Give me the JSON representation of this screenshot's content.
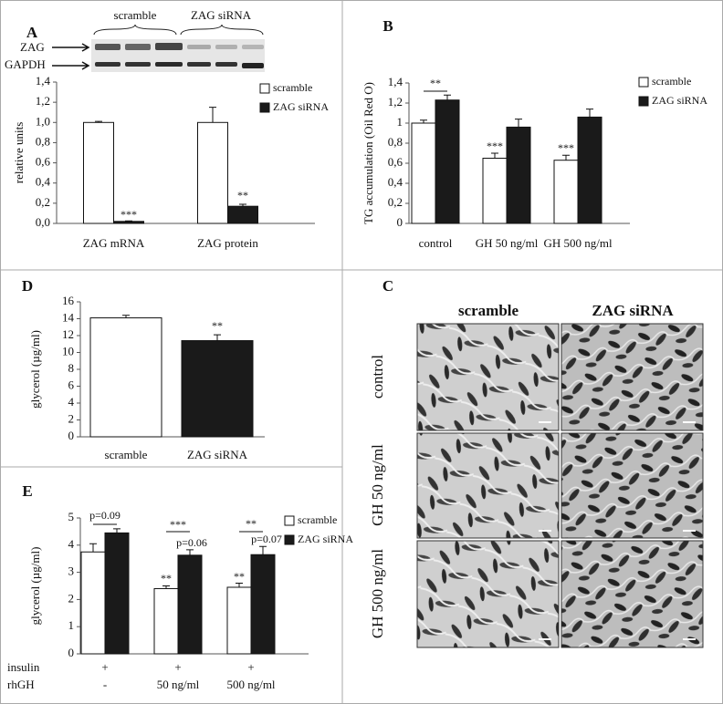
{
  "chart_data": [
    {
      "type": "bar",
      "panel": "A",
      "y_label": "relative units",
      "blot_groups": [
        "scramble",
        "ZAG siRNA"
      ],
      "blot_bands": [
        "ZAG",
        "GAPDH"
      ],
      "categories": [
        "ZAG mRNA",
        "ZAG protein"
      ],
      "series": [
        {
          "name": "scramble",
          "color": "#ffffff",
          "values": [
            1.0,
            1.0
          ],
          "errors": [
            0.01,
            0.15
          ]
        },
        {
          "name": "ZAG siRNA",
          "color": "#1a1a1a",
          "values": [
            0.02,
            0.17
          ],
          "errors": [
            0.005,
            0.02
          ]
        }
      ],
      "ylim": [
        0,
        1.4
      ],
      "yticks": [
        {
          "value": 0,
          "label": "0,0"
        },
        {
          "value": 0.2,
          "label": "0,2"
        },
        {
          "value": 0.4,
          "label": "0,4"
        },
        {
          "value": 0.6,
          "label": "0,6"
        },
        {
          "value": 0.8,
          "label": "0,8"
        },
        {
          "value": 1.0,
          "label": "1,0"
        },
        {
          "value": 1.2,
          "label": "1,2"
        },
        {
          "value": 1.4,
          "label": "1,4"
        }
      ],
      "annotations": [
        "***",
        "**"
      ]
    },
    {
      "type": "bar",
      "panel": "B",
      "y_label": "TG accumulation (Oil Red O)",
      "categories": [
        "control",
        "GH 50 ng/ml",
        "GH 500 ng/ml"
      ],
      "series": [
        {
          "name": "scramble",
          "color": "#ffffff",
          "values": [
            1.0,
            0.65,
            0.63
          ],
          "errors": [
            0.03,
            0.05,
            0.05
          ]
        },
        {
          "name": "ZAG siRNA",
          "color": "#1a1a1a",
          "values": [
            1.23,
            0.96,
            1.06
          ],
          "errors": [
            0.05,
            0.08,
            0.08
          ]
        }
      ],
      "ylim": [
        0,
        1.4
      ],
      "yticks": [
        0,
        {
          "value": 0.2,
          "label": "0,2"
        },
        {
          "value": 0.4,
          "label": "0,4"
        },
        {
          "value": 0.6,
          "label": "0,6"
        },
        {
          "value": 0.8,
          "label": "0,8"
        },
        1,
        {
          "value": 1.2,
          "label": "1,2"
        },
        {
          "value": 1.4,
          "label": "1,4"
        }
      ],
      "annotations": [
        "**",
        "***",
        "***"
      ]
    },
    {
      "type": "bar",
      "panel": "D",
      "y_label": "glycerol (µg/ml)",
      "categories": [
        "scramble",
        "ZAG siRNA"
      ],
      "values": [
        14.1,
        11.4
      ],
      "errors": [
        0.3,
        0.7
      ],
      "colors": [
        "#ffffff",
        "#1a1a1a"
      ],
      "ylim": [
        0,
        16
      ],
      "yticks": [
        0,
        2,
        4,
        6,
        8,
        10,
        12,
        14,
        16
      ],
      "annotations": [
        "**"
      ]
    },
    {
      "type": "bar",
      "panel": "E",
      "y_label": "glycerol (µg/ml)",
      "x_label": "rhGH",
      "categories": [
        "-",
        "50 ng/ml",
        "500 ng/ml"
      ],
      "secondary_categories": {
        "label": "insulin",
        "values": [
          "+",
          "+",
          "+"
        ]
      },
      "series": [
        {
          "name": "scramble",
          "color": "#ffffff",
          "values": [
            3.75,
            2.4,
            2.45
          ],
          "errors": [
            0.3,
            0.1,
            0.15
          ]
        },
        {
          "name": "ZAG siRNA",
          "color": "#1a1a1a",
          "values": [
            4.45,
            3.63,
            3.65
          ],
          "errors": [
            0.15,
            0.2,
            0.3
          ]
        }
      ],
      "ylim": [
        0,
        5
      ],
      "yticks": [
        0,
        1,
        2,
        3,
        4,
        5
      ],
      "annotations": [
        "p=0.09",
        "***",
        "p=0.06",
        "**",
        "**",
        "p=0.07",
        "**"
      ]
    }
  ],
  "micrographs": {
    "panel": "C",
    "columns": [
      "scramble",
      "ZAG siRNA"
    ],
    "rows": [
      "control",
      "GH 50 ng/ml",
      "GH 500 ng/ml"
    ]
  }
}
